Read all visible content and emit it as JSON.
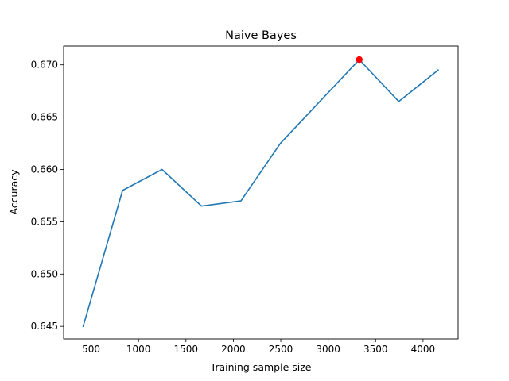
{
  "chart_data": {
    "type": "line",
    "title": "Naive Bayes",
    "xlabel": "Training sample size",
    "ylabel": "Accuracy",
    "xlim": [
      210,
      4370
    ],
    "ylim": [
      0.6438,
      0.6718
    ],
    "xticks": [
      500,
      1000,
      1500,
      2000,
      2500,
      3000,
      3500,
      4000
    ],
    "xtick_labels": [
      "500",
      "1000",
      "1500",
      "2000",
      "2500",
      "3000",
      "3500",
      "4000"
    ],
    "yticks": [
      0.645,
      0.65,
      0.655,
      0.66,
      0.665,
      0.67
    ],
    "ytick_labels": [
      "0.645",
      "0.650",
      "0.655",
      "0.660",
      "0.665",
      "0.670"
    ],
    "grid": false,
    "series": [
      {
        "x": [
          416,
          832,
          1248,
          1664,
          2080,
          2496,
          2912,
          3328,
          3744,
          4160
        ],
        "y": [
          0.645,
          0.658,
          0.66,
          0.6565,
          0.657,
          0.6625,
          0.6665,
          0.6705,
          0.6665,
          0.6695
        ],
        "color": "#1f77b4"
      }
    ],
    "highlight_point": {
      "x": 3328,
      "y": 0.6705,
      "color": "#ff0000"
    }
  }
}
